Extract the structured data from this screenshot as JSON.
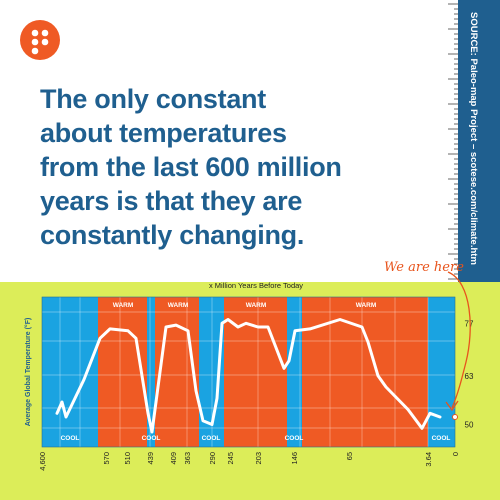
{
  "logo": {
    "icon": "dots-logo-icon",
    "color": "#ef5a24"
  },
  "source": {
    "text": "SOURCE: Paleo-map Project – scotese.com/climate.htm"
  },
  "headline": {
    "lines": [
      "The only constant",
      "about temperatures",
      "from the last 600 million",
      "years is that they are",
      "constantly changing."
    ]
  },
  "annotation": {
    "label": "We are here"
  },
  "colors": {
    "headline": "#1f5f8f",
    "warm": "#ef5a24",
    "cool": "#1aa3e1",
    "background_bottom": "#dced59",
    "accent": "#e8541c"
  },
  "chart_data": {
    "type": "area",
    "title": "x Million Years Before Today",
    "ylabel": "Average Global Temperature (°F)",
    "x_ticks": [
      "4,600",
      "570",
      "510",
      "439",
      "409",
      "363",
      "290",
      "245",
      "203",
      "146",
      "65",
      "3.64",
      "0"
    ],
    "y_ticks": [
      "77",
      "63",
      "50"
    ],
    "ylim": [
      44,
      84
    ],
    "bands": [
      {
        "type": "cool",
        "label": "COOL",
        "from": "4,600",
        "to": "570"
      },
      {
        "type": "warm",
        "label": "WARM",
        "from": "570",
        "to": "439"
      },
      {
        "type": "cool",
        "label": "COOL",
        "from": "439",
        "to": "439"
      },
      {
        "type": "warm",
        "label": "WARM",
        "from": "439",
        "to": "363"
      },
      {
        "type": "cool",
        "label": "COOL",
        "from": "290",
        "to": "290"
      },
      {
        "type": "warm",
        "label": "WARM",
        "from": "245",
        "to": "146"
      },
      {
        "type": "cool",
        "label": "COOL",
        "from": "146",
        "to": "146"
      },
      {
        "type": "warm",
        "label": "WARM",
        "from": "146",
        "to": "3.64"
      },
      {
        "type": "cool",
        "label": "COOL",
        "from": "3.64",
        "to": "0"
      }
    ],
    "series": [
      {
        "points": [
          [
            "4,600",
            53
          ],
          [
            "4,600",
            56
          ],
          [
            "4,600",
            52
          ],
          [
            "570",
            62
          ],
          [
            "570",
            73
          ],
          [
            "510",
            75.5
          ],
          [
            "510",
            75
          ],
          [
            "439",
            73
          ],
          [
            "439",
            53
          ],
          [
            "439",
            48
          ],
          [
            "439",
            56
          ],
          [
            "409",
            76
          ],
          [
            "409",
            76.5
          ],
          [
            "363",
            75
          ],
          [
            "363",
            59
          ],
          [
            "363",
            51
          ],
          [
            "290",
            50
          ],
          [
            "290",
            57
          ],
          [
            "245",
            77
          ],
          [
            "245",
            78
          ],
          [
            "245",
            76
          ],
          [
            "203",
            77
          ],
          [
            "203",
            76
          ],
          [
            "146",
            76
          ],
          [
            "146",
            65
          ],
          [
            "146",
            67
          ],
          [
            "146",
            75
          ],
          [
            "65",
            75.5
          ],
          [
            "65",
            78
          ],
          [
            "65",
            76
          ],
          [
            "65",
            72
          ],
          [
            "65",
            63
          ],
          [
            "3.64",
            60
          ],
          [
            "3.64",
            54
          ],
          [
            "3.64",
            49
          ],
          [
            "0",
            53
          ],
          [
            "0",
            52
          ]
        ]
      }
    ],
    "marker": {
      "x": "0",
      "y": 52,
      "label": "We are here"
    }
  }
}
